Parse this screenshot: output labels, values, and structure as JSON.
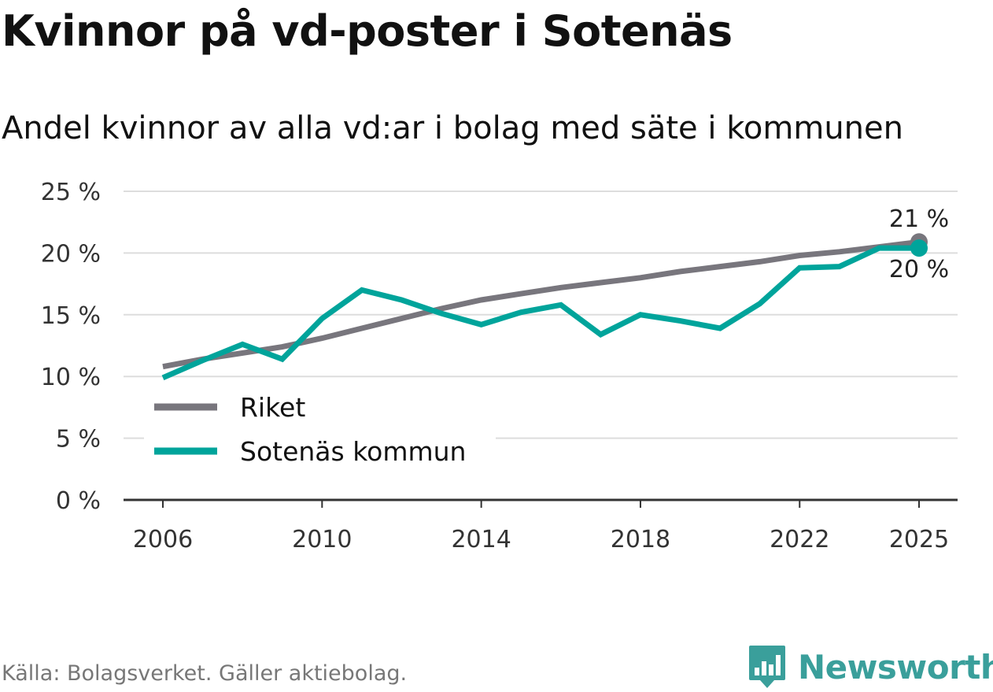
{
  "title": "Kvinnor på vd-poster i Sotenäs",
  "subtitle": "Andel kvinnor av alla vd:ar i bolag med säte i kommunen",
  "source": "Källa: Bolagsverket. Gäller aktiebolag.",
  "brand": "Newsworthy",
  "colors": {
    "riket": "#78767d",
    "sotenas": "#00a49b",
    "grid": "#dddddd",
    "axis": "#333333"
  },
  "chart_data": {
    "type": "line",
    "x": [
      2006,
      2007,
      2008,
      2009,
      2010,
      2011,
      2012,
      2013,
      2014,
      2015,
      2016,
      2017,
      2018,
      2019,
      2020,
      2021,
      2022,
      2023,
      2024,
      2025
    ],
    "xticks": [
      2006,
      2010,
      2014,
      2018,
      2022,
      2025
    ],
    "xtick_labels": [
      "2006",
      "2010",
      "2014",
      "2018",
      "2022",
      "2025"
    ],
    "yticks": [
      0,
      5,
      10,
      15,
      20,
      25
    ],
    "ytick_labels": [
      "0 %",
      "5 %",
      "10 %",
      "15 %",
      "20 %",
      "25 %"
    ],
    "xlim": [
      2006,
      2025
    ],
    "ylim": [
      0,
      25
    ],
    "series": [
      {
        "name": "Riket",
        "color": "#78767d",
        "values": [
          10.8,
          11.4,
          11.9,
          12.4,
          13.1,
          13.9,
          14.7,
          15.5,
          16.2,
          16.7,
          17.2,
          17.6,
          18.0,
          18.5,
          18.9,
          19.3,
          19.8,
          20.1,
          20.5,
          20.9
        ],
        "end_label": "21 %"
      },
      {
        "name": "Sotenäs kommun",
        "color": "#00a49b",
        "values": [
          9.9,
          11.3,
          12.6,
          11.4,
          14.7,
          17.0,
          16.2,
          15.1,
          14.2,
          15.2,
          15.8,
          13.4,
          15.0,
          14.5,
          13.9,
          15.9,
          18.8,
          18.9,
          20.4,
          20.4
        ],
        "end_label": "20 %"
      }
    ],
    "xlabel": "",
    "ylabel": "",
    "legend_position": "lower-left",
    "grid": true
  }
}
